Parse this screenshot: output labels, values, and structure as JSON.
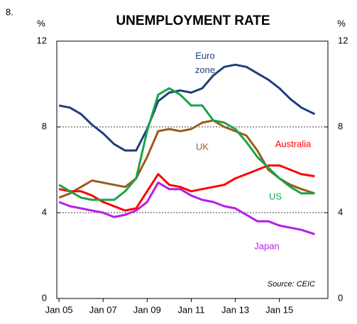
{
  "chart_data": {
    "type": "line",
    "number": "8.",
    "title": "UNEMPLOYMENT RATE",
    "ylabel": "%",
    "y2label": "%",
    "source": "Source: CEIC",
    "xlim": [
      2004.9,
      2017.2
    ],
    "xticks": [
      {
        "value": 2005,
        "label": "Jan 05"
      },
      {
        "value": 2007,
        "label": "Jan 07"
      },
      {
        "value": 2009,
        "label": "Jan 09"
      },
      {
        "value": 2011,
        "label": "Jan 11"
      },
      {
        "value": 2013,
        "label": "Jan 13"
      },
      {
        "value": 2015,
        "label": "Jan 15"
      }
    ],
    "ylim": [
      0,
      12
    ],
    "yticks": [
      0,
      4,
      8,
      12
    ],
    "y2lim": [
      0,
      12
    ],
    "y2ticks": [
      0,
      4,
      8,
      12
    ],
    "grid": true,
    "x": [
      2005,
      2005.5,
      2006,
      2006.5,
      2007,
      2007.5,
      2008,
      2008.5,
      2009,
      2009.5,
      2010,
      2010.5,
      2011,
      2011.5,
      2012,
      2012.5,
      2013,
      2013.5,
      2014,
      2014.5,
      2015,
      2015.5,
      2016,
      2016.6
    ],
    "series": [
      {
        "name": "Euro zone",
        "color": "#1f3f7a",
        "values": [
          9.0,
          8.9,
          8.6,
          8.1,
          7.7,
          7.2,
          6.9,
          6.9,
          7.9,
          9.2,
          9.6,
          9.7,
          9.6,
          9.8,
          10.4,
          10.8,
          10.9,
          10.8,
          10.5,
          10.2,
          9.8,
          9.3,
          8.9,
          8.6
        ]
      },
      {
        "name": "UK",
        "color": "#9c5a1e",
        "values": [
          4.7,
          4.9,
          5.2,
          5.5,
          5.4,
          5.3,
          5.2,
          5.6,
          6.6,
          7.8,
          7.9,
          7.8,
          7.9,
          8.2,
          8.3,
          8.0,
          7.8,
          7.6,
          6.9,
          6.0,
          5.6,
          5.3,
          5.1,
          4.9
        ]
      },
      {
        "name": "Australia",
        "color": "#ff0000",
        "values": [
          5.1,
          5.0,
          5.0,
          4.8,
          4.5,
          4.3,
          4.1,
          4.2,
          5.0,
          5.8,
          5.3,
          5.2,
          5.0,
          5.1,
          5.2,
          5.3,
          5.6,
          5.8,
          6.0,
          6.2,
          6.2,
          6.0,
          5.8,
          5.7
        ]
      },
      {
        "name": "US",
        "color": "#1aa34a",
        "values": [
          5.3,
          5.0,
          4.7,
          4.6,
          4.6,
          4.6,
          5.0,
          5.6,
          7.8,
          9.5,
          9.8,
          9.5,
          9.0,
          9.0,
          8.3,
          8.2,
          7.9,
          7.3,
          6.6,
          6.1,
          5.6,
          5.2,
          4.9,
          4.9
        ]
      },
      {
        "name": "Japan",
        "color": "#b31ee6",
        "values": [
          4.5,
          4.3,
          4.2,
          4.1,
          4.0,
          3.8,
          3.9,
          4.1,
          4.5,
          5.4,
          5.1,
          5.1,
          4.8,
          4.6,
          4.5,
          4.3,
          4.2,
          3.9,
          3.6,
          3.6,
          3.4,
          3.3,
          3.2,
          3.0
        ]
      }
    ]
  }
}
